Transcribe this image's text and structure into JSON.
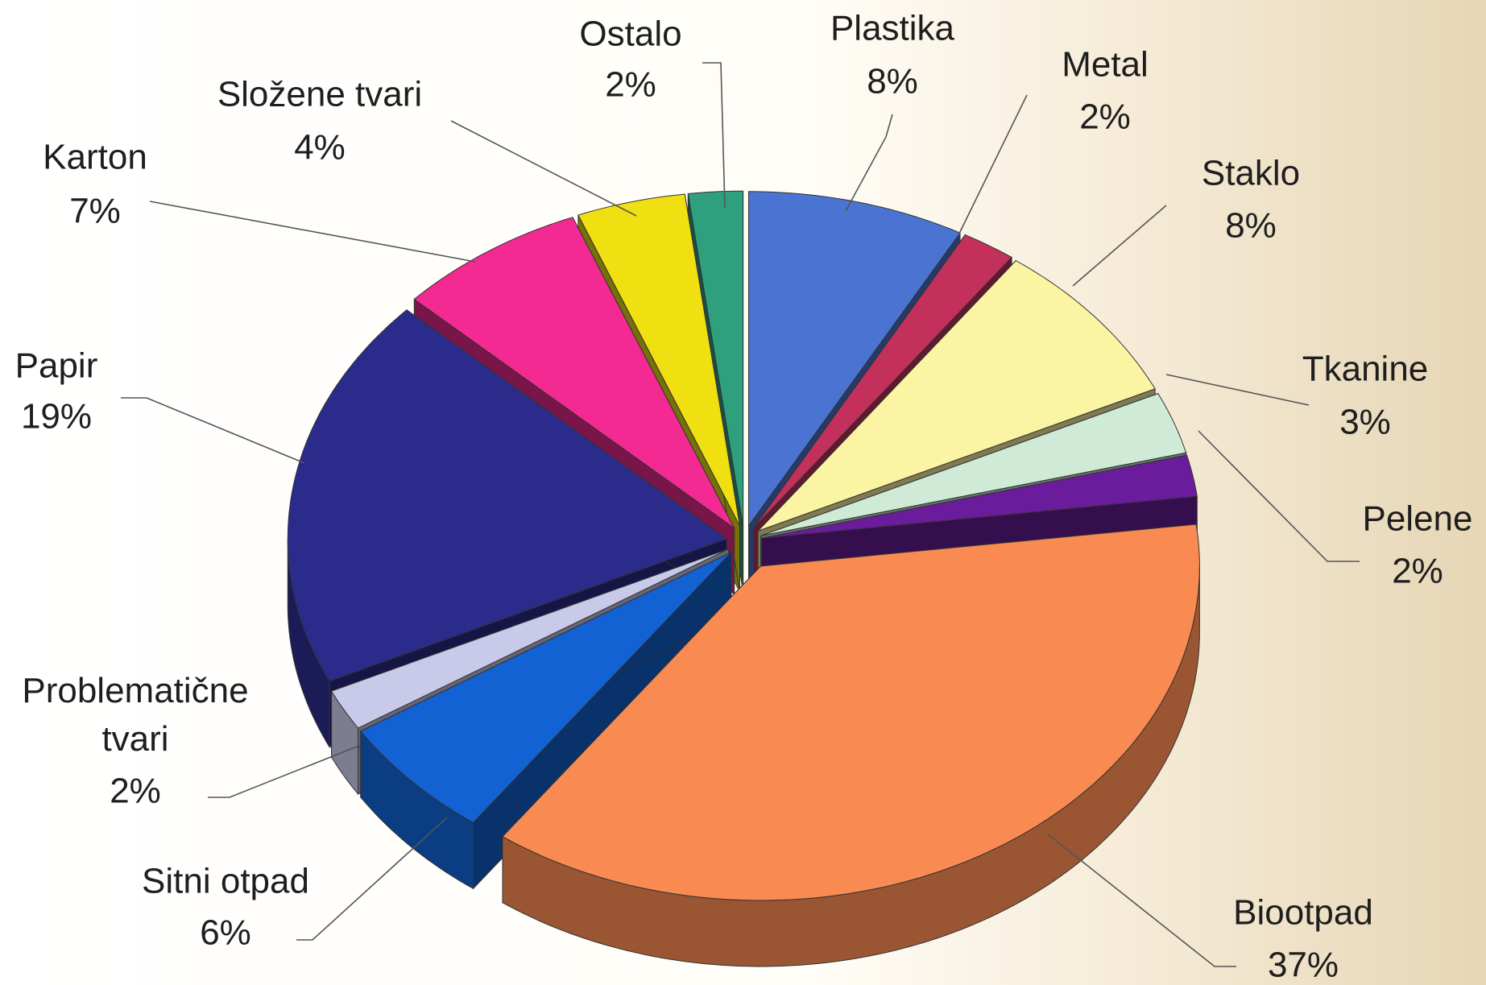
{
  "chart_data": {
    "type": "pie3d",
    "categories": [
      "Plastika",
      "Metal",
      "Staklo",
      "Tkanine",
      "Pelene",
      "Biootpad",
      "Sitni otpad",
      "Problematične tvari",
      "Papir",
      "Karton",
      "Složene tvari",
      "Ostalo"
    ],
    "values": [
      8,
      2,
      8,
      3,
      2,
      37,
      6,
      2,
      19,
      7,
      4,
      2
    ],
    "value_labels": [
      "8%",
      "2%",
      "8%",
      "3%",
      "2%",
      "37%",
      "6%",
      "2%",
      "19%",
      "7%",
      "4%",
      "2%"
    ],
    "colors": [
      "#4b74d2",
      "#c4305c",
      "#fbf4a2",
      "#cfead6",
      "#6a1c9c",
      "#f98b52",
      "#1262d4",
      "#c9c9ea",
      "#2b2b8c",
      "#f22a92",
      "#f0e012",
      "#2ea07e"
    ]
  }
}
